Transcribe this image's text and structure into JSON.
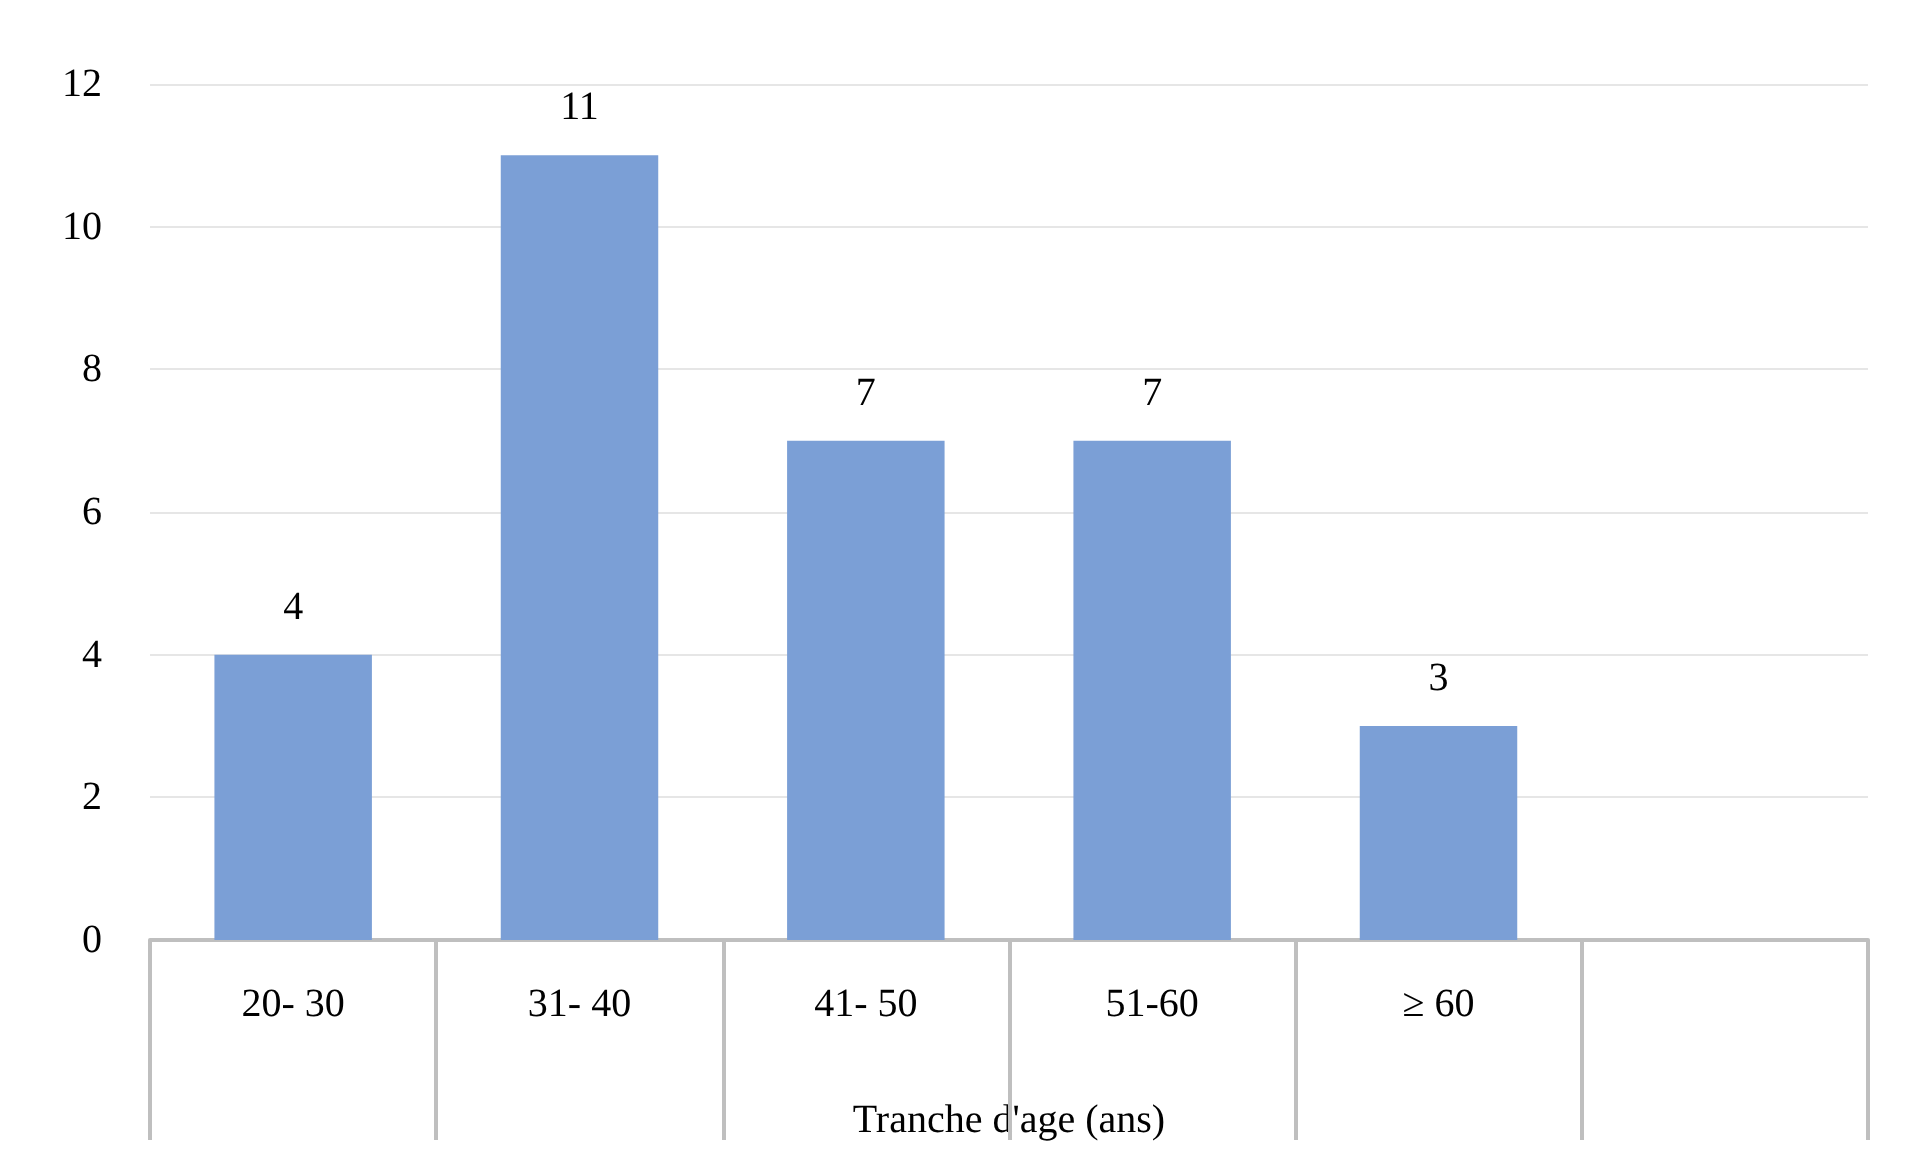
{
  "chart_data": {
    "type": "bar",
    "xlabel": "Tranche d'age (ans)",
    "categories": [
      "20- 30",
      "31- 40",
      "41- 50",
      "51-60",
      "≥ 60",
      null
    ],
    "values": [
      4,
      11,
      7,
      7,
      3,
      null
    ],
    "color": "#7b9fd6",
    "ylim": [
      0,
      12
    ],
    "yticks": [
      0,
      2,
      4,
      6,
      8,
      10,
      12
    ],
    "grid": "y",
    "data_labels": true
  }
}
